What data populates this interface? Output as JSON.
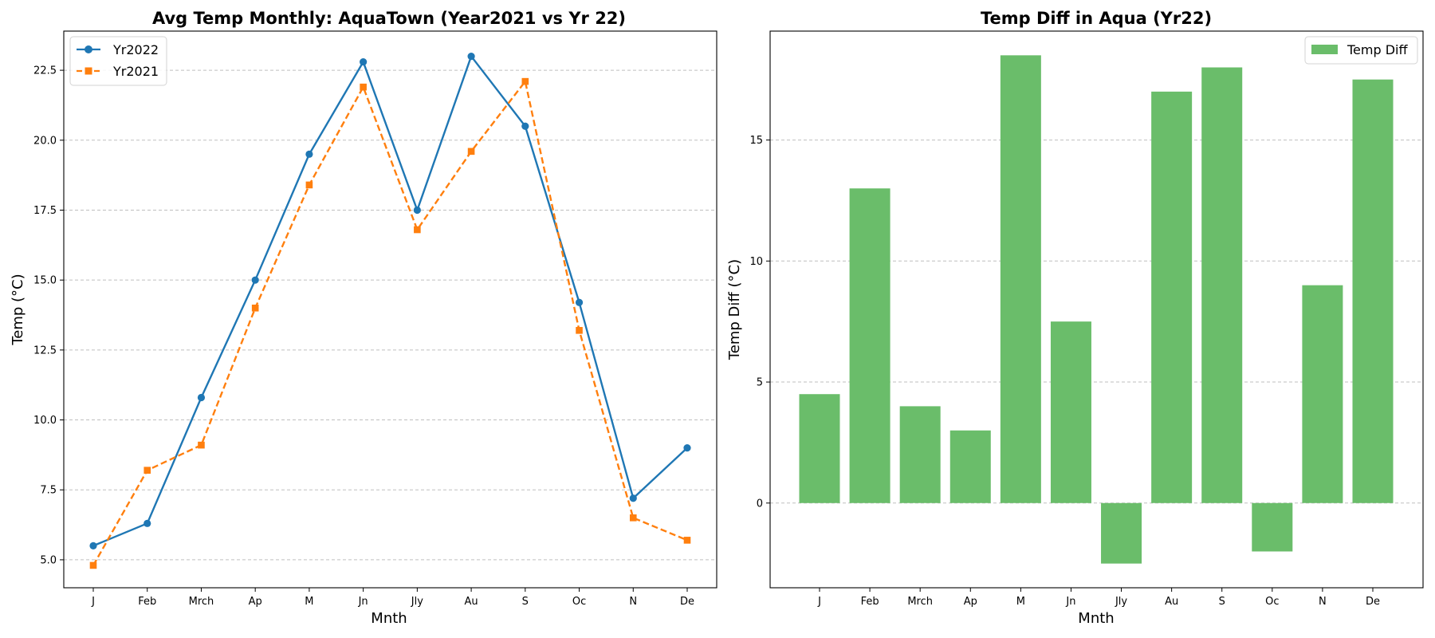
{
  "chart_data": [
    {
      "type": "line",
      "title": "Avg Temp Monthly: AquaTown (Year2021 vs Yr 22)",
      "xlabel": "Mnth",
      "ylabel": "Temp (°C)",
      "categories": [
        "J",
        "Feb",
        "Mrch",
        "Ap",
        "M",
        "Jn",
        "Jly",
        "Au",
        "S",
        "Oc",
        "N",
        "De"
      ],
      "ylim": [
        4.0,
        23.9
      ],
      "yticks": [
        "5.0",
        "7.5",
        "10.0",
        "12.5",
        "15.0",
        "17.5",
        "20.0",
        "22.5"
      ],
      "grid": "y",
      "legend_position": "top-left",
      "series": [
        {
          "name": "Yr2022",
          "color": "#1f77b4",
          "marker": "circle",
          "linestyle": "solid",
          "values": [
            5.5,
            6.3,
            10.8,
            15.0,
            19.5,
            22.8,
            17.5,
            23.0,
            20.5,
            14.2,
            7.2,
            9.0
          ]
        },
        {
          "name": "Yr2021",
          "color": "#ff7f0e",
          "marker": "square",
          "linestyle": "dashed",
          "values": [
            4.8,
            8.2,
            9.1,
            14.0,
            18.4,
            21.9,
            16.8,
            19.6,
            22.1,
            13.2,
            6.5,
            5.7
          ]
        }
      ]
    },
    {
      "type": "bar",
      "title": "Temp Diff in Aqua (Yr22)",
      "xlabel": "Mnth",
      "ylabel": "Temp Diff (°C)",
      "categories": [
        "J",
        "Feb",
        "Mrch",
        "Ap",
        "M",
        "Jn",
        "Jly",
        "Au",
        "S",
        "Oc",
        "N",
        "De"
      ],
      "ylim": [
        -3.5,
        19.5
      ],
      "yticks": [
        "0",
        "5",
        "10",
        "15"
      ],
      "grid": "y",
      "legend_position": "top-right",
      "series": [
        {
          "name": "Temp Diff",
          "color": "#6abd6a",
          "values": [
            4.5,
            13.0,
            4.0,
            3.0,
            18.5,
            7.5,
            -2.5,
            17.0,
            18.0,
            -2.0,
            9.0,
            17.5
          ]
        }
      ]
    }
  ]
}
